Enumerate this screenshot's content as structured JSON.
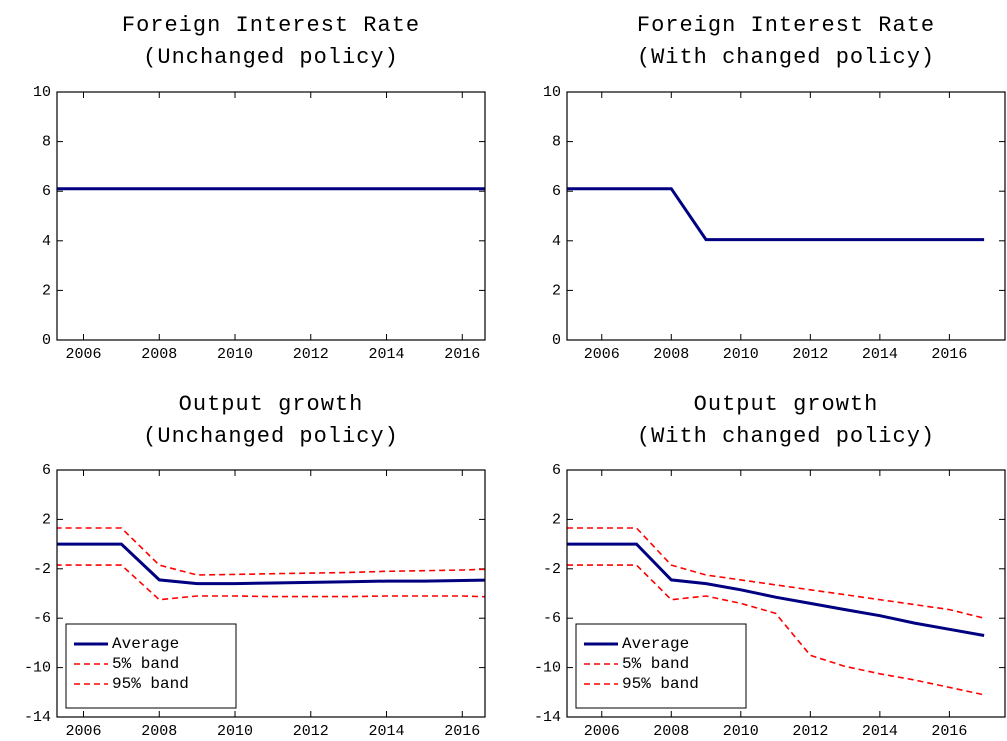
{
  "chart_data": [
    {
      "type": "line",
      "title": "Foreign Interest Rate",
      "subtitle": "(Unchanged policy)",
      "x": [
        2005,
        2006,
        2007,
        2008,
        2009,
        2010,
        2011,
        2012,
        2013,
        2014,
        2015,
        2016,
        2017
      ],
      "series": [
        {
          "color": "#000080",
          "values": [
            6.1,
            6.1,
            6.1,
            6.1,
            6.1,
            6.1,
            6.1,
            6.1,
            6.1,
            6.1,
            6.1,
            6.1,
            6.1
          ]
        }
      ],
      "xlim": [
        2005.3,
        2016.6
      ],
      "xticks": [
        2006,
        2008,
        2010,
        2012,
        2014,
        2016
      ],
      "ylim": [
        0,
        10
      ],
      "yticks": [
        0,
        2,
        4,
        6,
        8,
        10
      ]
    },
    {
      "type": "line",
      "title": "Foreign Interest Rate",
      "subtitle": "(With changed policy)",
      "x": [
        2005,
        2006,
        2007,
        2008,
        2009,
        2010,
        2011,
        2012,
        2013,
        2014,
        2015,
        2016,
        2017
      ],
      "series": [
        {
          "color": "#000080",
          "values": [
            6.1,
            6.1,
            6.1,
            6.1,
            4.05,
            4.05,
            4.05,
            4.05,
            4.05,
            4.05,
            4.05,
            4.05,
            4.05
          ]
        }
      ],
      "xlim": [
        2005,
        2017.6
      ],
      "xticks": [
        2006,
        2008,
        2010,
        2012,
        2014,
        2016
      ],
      "ylim": [
        0,
        10
      ],
      "yticks": [
        0,
        2,
        4,
        6,
        8,
        10
      ]
    },
    {
      "type": "line",
      "title": "Output growth",
      "subtitle": "(Unchanged policy)",
      "x": [
        2005,
        2006,
        2007,
        2008,
        2009,
        2010,
        2011,
        2012,
        2013,
        2014,
        2015,
        2016,
        2017
      ],
      "series": [
        {
          "name": "Average",
          "color": "#000080",
          "dashed": false,
          "values": [
            0,
            0,
            0,
            -2.9,
            -3.2,
            -3.2,
            -3.15,
            -3.1,
            -3.05,
            -3.0,
            -3.0,
            -2.95,
            -2.9
          ]
        },
        {
          "name": "5% band",
          "color": "#ff0000",
          "dashed": true,
          "values": [
            -1.7,
            -1.7,
            -1.7,
            -4.5,
            -4.2,
            -4.2,
            -4.25,
            -4.25,
            -4.25,
            -4.2,
            -4.2,
            -4.2,
            -4.3
          ]
        },
        {
          "name": "95% band",
          "color": "#ff0000",
          "dashed": true,
          "values": [
            1.3,
            1.3,
            1.3,
            -1.7,
            -2.5,
            -2.45,
            -2.4,
            -2.35,
            -2.3,
            -2.2,
            -2.15,
            -2.1,
            -2.0
          ]
        }
      ],
      "legend": "lower left",
      "xlim": [
        2005.3,
        2016.6
      ],
      "xticks": [
        2006,
        2008,
        2010,
        2012,
        2014,
        2016
      ],
      "ylim": [
        -14,
        6
      ],
      "yticks": [
        -14,
        -10,
        -6,
        -2,
        2,
        6
      ]
    },
    {
      "type": "line",
      "title": "Output growth",
      "subtitle": "(With changed policy)",
      "x": [
        2005,
        2006,
        2007,
        2008,
        2009,
        2010,
        2011,
        2012,
        2013,
        2014,
        2015,
        2016,
        2017
      ],
      "series": [
        {
          "name": "Average",
          "color": "#000080",
          "dashed": false,
          "values": [
            0,
            0,
            0,
            -2.9,
            -3.2,
            -3.7,
            -4.3,
            -4.8,
            -5.3,
            -5.8,
            -6.4,
            -6.9,
            -7.4
          ]
        },
        {
          "name": "5% band",
          "color": "#ff0000",
          "dashed": true,
          "values": [
            -1.7,
            -1.7,
            -1.7,
            -4.5,
            -4.2,
            -4.8,
            -5.6,
            -9.0,
            -9.9,
            -10.5,
            -11.0,
            -11.6,
            -12.2
          ]
        },
        {
          "name": "95% band",
          "color": "#ff0000",
          "dashed": true,
          "values": [
            1.3,
            1.3,
            1.3,
            -1.7,
            -2.5,
            -2.9,
            -3.3,
            -3.7,
            -4.1,
            -4.5,
            -4.9,
            -5.3,
            -6.0
          ]
        }
      ],
      "legend": "lower left",
      "xlim": [
        2005,
        2017.6
      ],
      "xticks": [
        2006,
        2008,
        2010,
        2012,
        2014,
        2016
      ],
      "ylim": [
        -14,
        6
      ],
      "yticks": [
        -14,
        -10,
        -6,
        -2,
        2,
        6
      ]
    }
  ]
}
